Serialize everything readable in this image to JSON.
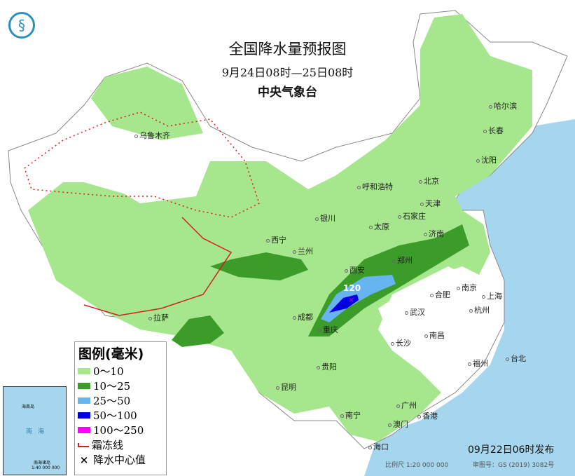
{
  "title": "全国降水量预报图",
  "period": "9月24日08时—25日08时",
  "agency": "中央气象台",
  "legend": {
    "title": "图例(毫米)",
    "items": [
      {
        "label": "0～10",
        "color": "#a6e68c"
      },
      {
        "label": "10～25",
        "color": "#3c9c2a"
      },
      {
        "label": "25～50",
        "color": "#66b4f0"
      },
      {
        "label": "50～100",
        "color": "#0000e0"
      },
      {
        "label": "100～250",
        "color": "#ff00ff"
      },
      {
        "label": "霜冻线",
        "color": "#d02020"
      },
      {
        "label": "降水中心值",
        "symbol": "×"
      }
    ]
  },
  "center_value": "120",
  "cities": [
    "乌鲁木齐",
    "哈尔滨",
    "长春",
    "沈阳",
    "北京",
    "呼和浩特",
    "天津",
    "银川",
    "太原",
    "石家庄",
    "济南",
    "西宁",
    "兰州",
    "郑州",
    "西安",
    "合肥",
    "南京",
    "上海",
    "成都",
    "武汉",
    "杭州",
    "重庆",
    "拉萨",
    "长沙",
    "南昌",
    "贵阳",
    "福州",
    "台北",
    "昆明",
    "广州",
    "南宁",
    "香港",
    "澳门",
    "海口"
  ],
  "inset": {
    "sea": "南海",
    "islands": "海南岛",
    "nanhai_islands": "南海诸岛",
    "scale": "1:40 000 000"
  },
  "publish": "09月22日06时发布",
  "scale": "比例尺 1:20 000 000",
  "map_number": "审图号：GS (2019) 3082号",
  "colors": {
    "sea": "#a6d6ee",
    "land": "#ffffff",
    "light_rain": "#a6e68c",
    "moderate_rain": "#3c9c2a"
  }
}
